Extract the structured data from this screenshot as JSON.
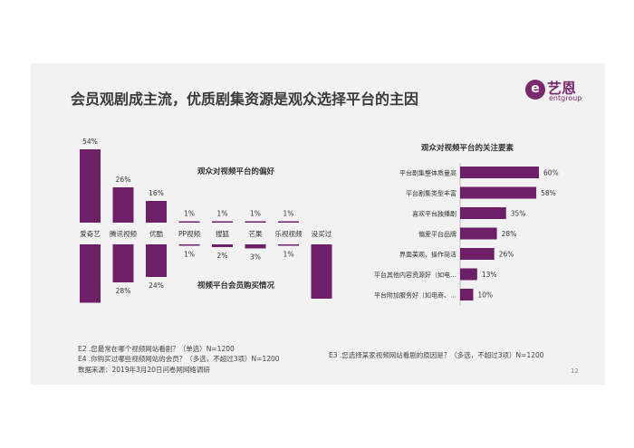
{
  "title": "会员观剧成主流，优质剧集资源是观众选择平台的主因",
  "logo": {
    "mark": "e",
    "name": "艺恩",
    "sub": "entgroup"
  },
  "colors": {
    "bar": "#6d1f68",
    "background": "#f2f2f2",
    "text": "#333333"
  },
  "page_number": "12",
  "notes": {
    "e2": "E2 .您最常在哪个视频网站看剧？（单选）N=1200",
    "e4": "E4 .你购买过哪些视频网站的会员？（多选，不超过3项）N=1200",
    "source": "数据来源：2019年3月20日问卷网网络调研",
    "e3": "E3 .您选择某家视频网站看剧的原因是？（多选，不超过3项）N=1200"
  },
  "chart_data": [
    {
      "type": "bar",
      "title": "观众对视频平台的偏好",
      "orientation": "vertical-up",
      "categories": [
        "爱奇艺",
        "腾讯视频",
        "优酷",
        "PP视频",
        "搜狐",
        "芒果",
        "乐视视频",
        "没买过"
      ],
      "series": [
        {
          "values": [
            54,
            26,
            16,
            1,
            1,
            1,
            1,
            null
          ],
          "labels": [
            "54%",
            "26%",
            "16%",
            "1%",
            "1%",
            "1%",
            "1%",
            ""
          ]
        }
      ]
    },
    {
      "type": "bar",
      "title": "视频平台会员购买情况",
      "orientation": "vertical-down",
      "categories": [
        "爱奇艺",
        "腾讯视频",
        "优酷",
        "PP视频",
        "搜狐",
        "芒果",
        "乐视视频",
        "没买过"
      ],
      "series": [
        {
          "values": [
            43,
            28,
            24,
            1,
            2,
            3,
            1,
            40
          ],
          "labels": [
            "43%",
            "28%",
            "24%",
            "1%",
            "2%",
            "3%",
            "1%",
            "40%"
          ]
        }
      ]
    },
    {
      "type": "bar",
      "title": "观众对视频平台的关注要素",
      "orientation": "horizontal",
      "categories": [
        "平台剧集整体质量高",
        "平台剧集类型丰富",
        "喜欢平台独播剧",
        "偏爱平台品牌",
        "界面美观、操作简洁",
        "平台其他内容资源好（如电…",
        "平台附加服务好（如电商、…"
      ],
      "series": [
        {
          "values": [
            60,
            58,
            35,
            28,
            26,
            13,
            10
          ],
          "labels": [
            "60%",
            "58%",
            "35%",
            "28%",
            "26%",
            "13%",
            "10%"
          ]
        }
      ]
    }
  ]
}
